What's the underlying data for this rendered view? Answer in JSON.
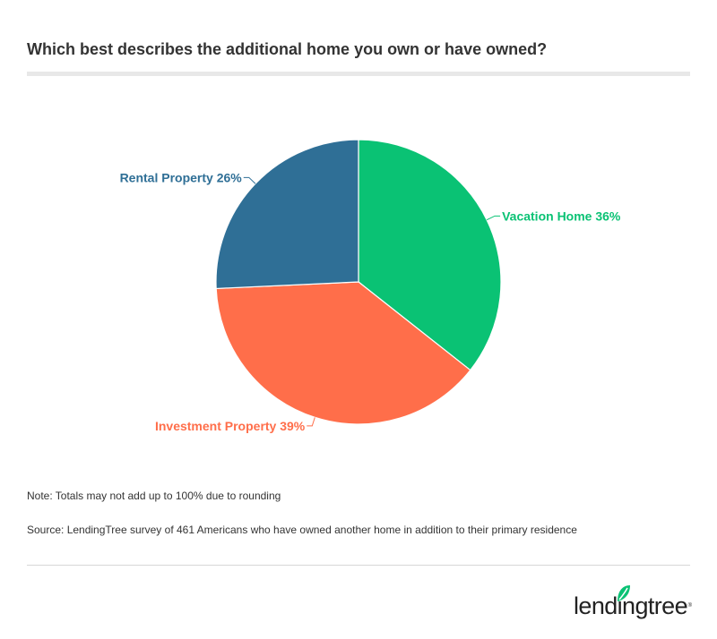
{
  "title": "Which best describes the additional home you own or have owned?",
  "chart_data": {
    "type": "pie",
    "slices": [
      {
        "label": "Vacation Home",
        "value": 36,
        "display": "Vacation Home 36%",
        "color": "#0ac274"
      },
      {
        "label": "Investment Property",
        "value": 39,
        "display": "Investment Property 39%",
        "color": "#ff6e4a"
      },
      {
        "label": "Rental Property",
        "value": 26,
        "display": "Rental Property 26%",
        "color": "#2f6f96"
      }
    ],
    "start": "12 o'clock",
    "direction": "clockwise"
  },
  "note": "Note: Totals may not add up to 100% due to rounding",
  "source": "Source: LendingTree survey of 461 Americans who have owned another home in addition to their primary residence",
  "logo": {
    "text": "lendingtree",
    "brand_color": "#0ac274"
  }
}
